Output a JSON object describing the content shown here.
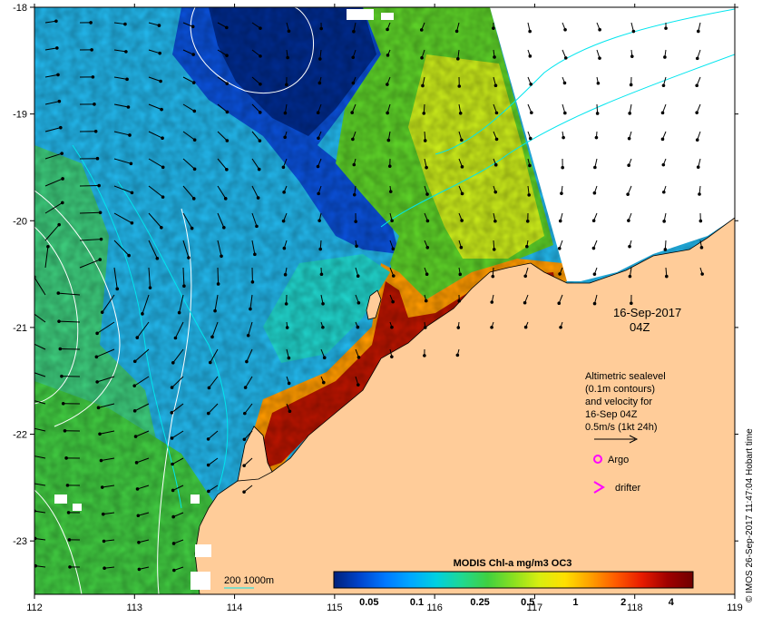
{
  "map": {
    "lon_ticks": [
      "112",
      "113",
      "114",
      "115",
      "116",
      "117",
      "118",
      "119"
    ],
    "lat_ticks": [
      "-18",
      "-19",
      "-20",
      "-21",
      "-22",
      "-23"
    ],
    "lon_range": [
      112,
      119
    ],
    "lat_range": [
      -18,
      -23.5
    ]
  },
  "date": {
    "line1": "16-Sep-2017",
    "line2": "04Z"
  },
  "legend": {
    "line1": "Altimetric sealevel",
    "line2": "(0.1m contours)",
    "line3": "and velocity for",
    "line4": "16-Sep 04Z",
    "line5": "0.5m/s (1kt 24h)",
    "argo_label": "Argo",
    "drifter_label": "drifter",
    "argo_color": "#ff00ff",
    "drifter_color": "#ff00ff"
  },
  "depth_legend": {
    "label": "200  1000m",
    "color": "#00e5ee"
  },
  "colorbar": {
    "title": "MODIS Chl-a mg/m3 OC3",
    "ticks": [
      "0.05",
      "0.1",
      "0.25",
      "0.5",
      "1",
      "2",
      "4"
    ],
    "colors": [
      "#00207a",
      "#0044cc",
      "#0078ff",
      "#00a8ff",
      "#00d0e0",
      "#20d890",
      "#40d040",
      "#8ae020",
      "#d8ee10",
      "#ffe000",
      "#ffa000",
      "#ff5a00",
      "#e81c00",
      "#a00000",
      "#700000"
    ]
  },
  "credit": "© IMOS 26-Sep-2017 11:47:04 Hobart time",
  "colors": {
    "land": "#ffcc99",
    "contour": "#ffffff",
    "isobath": "#00e5ee",
    "vector": "#000000"
  }
}
